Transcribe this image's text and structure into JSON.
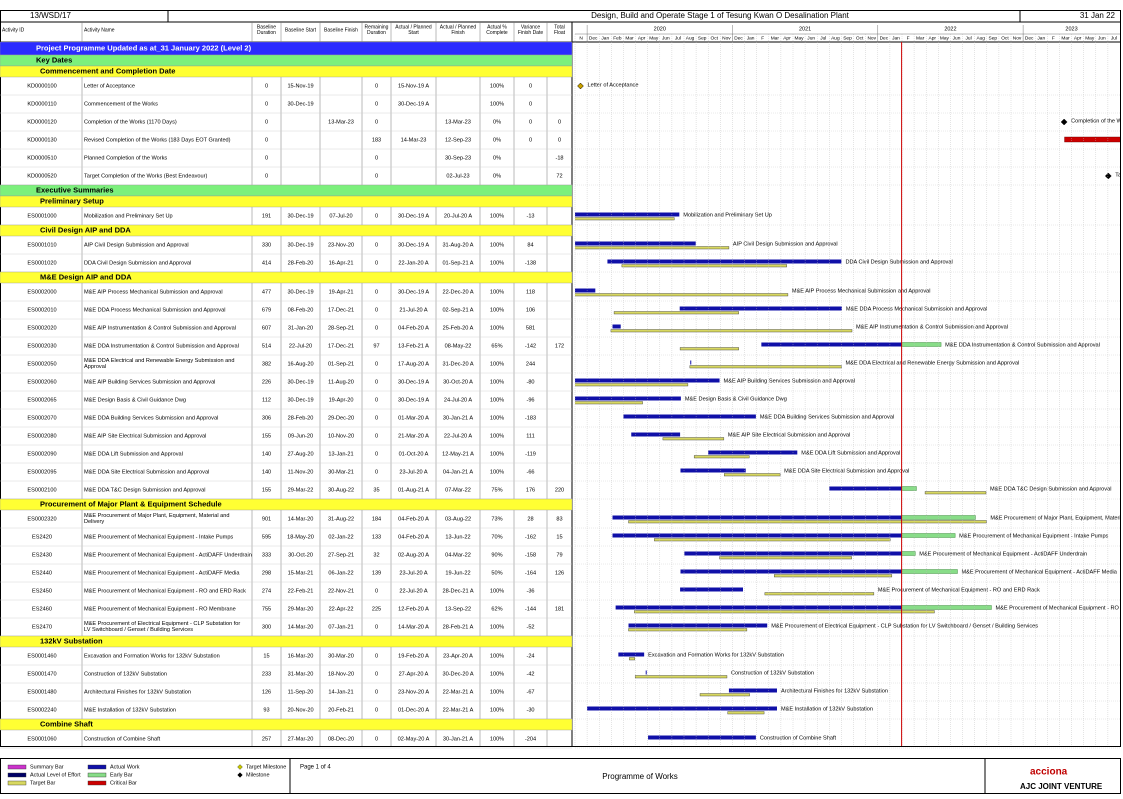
{
  "header": {
    "project_id": "13/WSD/17",
    "title": "Design, Build and Operate Stage 1 of Tesung Kwan O Desalination Plant",
    "data_date": "31 Jan 22"
  },
  "columns": [
    "Activity ID",
    "Activity Name",
    "Baseline Duration",
    "Baseline Start",
    "Baseline Finish",
    "Remaining Duration",
    "Actual / Planned Start",
    "Actual / Planned Finish",
    "Actual % Complete",
    "Variance Finish Date",
    "Total Float"
  ],
  "timeline": {
    "years": [
      "2020",
      "2021",
      "2022",
      "2023"
    ],
    "months": [
      "N",
      "Dec",
      "Jan",
      "Feb",
      "Mar",
      "Apr",
      "May",
      "Jun",
      "Jul",
      "Aug",
      "Sep",
      "Oct",
      "Nov",
      "Dec",
      "Jan",
      "F",
      "Mar",
      "Apr",
      "May",
      "Jun",
      "Jul",
      "Aug",
      "Sep",
      "Oct",
      "Nov",
      "Dec",
      "Jan",
      "F",
      "Mar",
      "Apr",
      "May",
      "Jun",
      "Jul",
      "Aug",
      "Sep",
      "Oct",
      "Nov",
      "Dec",
      "Jan",
      "F",
      "Mar",
      "Apr",
      "May",
      "Jun",
      "Jul"
    ]
  },
  "rows": [
    {
      "level": "banner",
      "text": "Project Programme Updated as at_31 January 2022 (Level 2)"
    },
    {
      "level": "group",
      "text": "Key Dates"
    },
    {
      "level": "section",
      "text": "Commencement and Completion Date"
    },
    {
      "cells": [
        "KD0000100",
        "Letter of Acceptance",
        "0",
        "15-Nov-19",
        null,
        "0",
        "15-Nov-19 A",
        null,
        "100%",
        "0",
        null
      ]
    },
    {
      "cells": [
        "KD0000110",
        "Commencement of the Works",
        "0",
        "30-Dec-19",
        null,
        "0",
        "30-Dec-19 A",
        null,
        "100%",
        "0",
        null
      ]
    },
    {
      "cells": [
        "KD0000120",
        "Completion of the Works (1170 Days)",
        "0",
        null,
        "13-Mar-23",
        "0",
        null,
        "13-Mar-23",
        "0%",
        "0",
        "0"
      ]
    },
    {
      "cells": [
        "KD0000130",
        "Revised Completion of the Works (183 Days EOT Granted)",
        "0",
        null,
        null,
        "183",
        "14-Mar-23",
        "12-Sep-23",
        "0%",
        "0",
        "0"
      ]
    },
    {
      "cells": [
        "KD0000510",
        "Planned Completion of the Works",
        "0",
        null,
        null,
        "0",
        null,
        "30-Sep-23",
        "0%",
        null,
        "-18"
      ]
    },
    {
      "cells": [
        "KD0000520",
        "Target Completion of the Works (Best Endeavour)",
        "0",
        null,
        null,
        "0",
        null,
        "02-Jul-23",
        "0%",
        null,
        "72"
      ]
    },
    {
      "level": "group",
      "text": "Executive Summaries"
    },
    {
      "level": "section",
      "text": "Preliminary Setup"
    },
    {
      "cells": [
        "ES0001000",
        "Mobilization and Preliminary Set Up",
        "191",
        "30-Dec-19",
        "07-Jul-20",
        "0",
        "30-Dec-19 A",
        "20-Jul-20 A",
        "100%",
        "-13",
        null
      ]
    },
    {
      "level": "section",
      "text": "Civil Design AIP and DDA"
    },
    {
      "cells": [
        "ES0001010",
        "AIP Civil Design Submission and Approval",
        "330",
        "30-Dec-19",
        "23-Nov-20",
        "0",
        "30-Dec-19 A",
        "31-Aug-20 A",
        "100%",
        "84",
        null
      ]
    },
    {
      "cells": [
        "ES0001020",
        "DDA Civil Design Submission and Approval",
        "414",
        "28-Feb-20",
        "16-Apr-21",
        "0",
        "22-Jan-20 A",
        "01-Sep-21 A",
        "100%",
        "-138",
        null
      ]
    },
    {
      "level": "section",
      "text": "M&E Design AIP and DDA"
    },
    {
      "cells": [
        "ES0002000",
        "M&E AIP Process Mechanical Submission and Approval",
        "477",
        "30-Dec-19",
        "19-Apr-21",
        "0",
        "30-Dec-19 A",
        "22-Dec-20 A",
        "100%",
        "118",
        null
      ]
    },
    {
      "cells": [
        "ES0002010",
        "M&E DDA Process Mechanical Submission and Approval",
        "679",
        "08-Feb-20",
        "17-Dec-21",
        "0",
        "21-Jul-20 A",
        "02-Sep-21 A",
        "100%",
        "106",
        null
      ]
    },
    {
      "cells": [
        "ES0002020",
        "M&E AIP Instrumentation & Control Submission and Approval",
        "607",
        "31-Jan-20",
        "28-Sep-21",
        "0",
        "04-Feb-20 A",
        "25-Feb-20 A",
        "100%",
        "581",
        null
      ]
    },
    {
      "cells": [
        "ES0002030",
        "M&E DDA Instrumentation & Control Submission and Approval",
        "514",
        "22-Jul-20",
        "17-Dec-21",
        "97",
        "13-Feb-21 A",
        "08-May-22",
        "65%",
        "-142",
        "172"
      ]
    },
    {
      "cells": [
        "ES0002050",
        "M&E DDA Electrical and Renewable Energy Submission and Approval",
        "382",
        "16-Aug-20",
        "01-Sep-21",
        "0",
        "17-Aug-20 A",
        "31-Dec-20 A",
        "100%",
        "244",
        null
      ]
    },
    {
      "cells": [
        "ES0002060",
        "M&E AIP Building Services Submission and Approval",
        "226",
        "30-Dec-19",
        "11-Aug-20",
        "0",
        "30-Dec-19 A",
        "30-Oct-20 A",
        "100%",
        "-80",
        null
      ]
    },
    {
      "cells": [
        "ES0002065",
        "M&E Design Basis & Civil Guidance Dwg",
        "112",
        "30-Dec-19",
        "19-Apr-20",
        "0",
        "30-Dec-19 A",
        "24-Jul-20 A",
        "100%",
        "-96",
        null
      ]
    },
    {
      "cells": [
        "ES0002070",
        "M&E DDA Building Services Submission and Approval",
        "306",
        "28-Feb-20",
        "29-Dec-20",
        "0",
        "01-Mar-20 A",
        "30-Jan-21 A",
        "100%",
        "-183",
        null
      ]
    },
    {
      "cells": [
        "ES0002080",
        "M&E AIP Site Electrical Submission and Approval",
        "155",
        "09-Jun-20",
        "10-Nov-20",
        "0",
        "21-Mar-20 A",
        "22-Jul-20 A",
        "100%",
        "111",
        null
      ]
    },
    {
      "cells": [
        "ES0002090",
        "M&E DDA Lift Submission and Approval",
        "140",
        "27-Aug-20",
        "13-Jan-21",
        "0",
        "01-Oct-20 A",
        "12-May-21 A",
        "100%",
        "-119",
        null
      ]
    },
    {
      "cells": [
        "ES0002095",
        "M&E DDA Site Electrical Submission and Approval",
        "140",
        "11-Nov-20",
        "30-Mar-21",
        "0",
        "23-Jul-20 A",
        "04-Jan-21 A",
        "100%",
        "-66",
        null
      ]
    },
    {
      "cells": [
        "ES0002100",
        "M&E DDA T&C Design Submission and Approval",
        "155",
        "29-Mar-22",
        "30-Aug-22",
        "35",
        "01-Aug-21 A",
        "07-Mar-22",
        "75%",
        "176",
        "220"
      ]
    },
    {
      "level": "section",
      "text": "Procurement of Major Plant & Equipment Schedule"
    },
    {
      "cells": [
        "ES0002320",
        "M&E Procurement of Major Plant, Equipment, Material and Delivery",
        "901",
        "14-Mar-20",
        "31-Aug-22",
        "184",
        "04-Feb-20 A",
        "03-Aug-22",
        "73%",
        "28",
        "83"
      ]
    },
    {
      "cells": [
        "ES2420",
        "M&E Procurement of Mechanical Equipment - Intake Pumps",
        "595",
        "18-May-20",
        "02-Jan-22",
        "133",
        "04-Feb-20 A",
        "13-Jun-22",
        "70%",
        "-162",
        "15"
      ]
    },
    {
      "cells": [
        "ES2430",
        "M&E Procurement of Mechanical Equipment - ActiDAFF Underdrain",
        "333",
        "30-Oct-20",
        "27-Sep-21",
        "32",
        "02-Aug-20 A",
        "04-Mar-22",
        "90%",
        "-158",
        "79"
      ]
    },
    {
      "cells": [
        "ES2440",
        "M&E Procurement of Mechanical Equipment - ActiDAFF Media",
        "298",
        "15-Mar-21",
        "06-Jan-22",
        "139",
        "23-Jul-20 A",
        "19-Jun-22",
        "50%",
        "-164",
        "126"
      ]
    },
    {
      "cells": [
        "ES2450",
        "M&E Procurement of Mechanical Equipment - RO and ERD Rack",
        "274",
        "22-Feb-21",
        "22-Nov-21",
        "0",
        "22-Jul-20 A",
        "28-Dec-21 A",
        "100%",
        "-36",
        null
      ]
    },
    {
      "cells": [
        "ES2460",
        "M&E Procurement of Mechanical Equipment - RO Membrane",
        "755",
        "29-Mar-20",
        "22-Apr-22",
        "225",
        "12-Feb-20 A",
        "13-Sep-22",
        "62%",
        "-144",
        "181"
      ]
    },
    {
      "cells": [
        "ES2470",
        "M&E Procurement of Electrical Equipment - CLP Substation for LV Switchboard / Genset / Building Services",
        "300",
        "14-Mar-20",
        "07-Jan-21",
        "0",
        "14-Mar-20 A",
        "28-Feb-21 A",
        "100%",
        "-52",
        null
      ]
    },
    {
      "level": "section",
      "text": "132kV Substation"
    },
    {
      "cells": [
        "ES0001460",
        "Excavation and Formation Works for 132kV Substation",
        "15",
        "16-Mar-20",
        "30-Mar-20",
        "0",
        "19-Feb-20 A",
        "23-Apr-20 A",
        "100%",
        "-24",
        null
      ]
    },
    {
      "cells": [
        "ES0001470",
        "Construction of 132kV Substation",
        "233",
        "31-Mar-20",
        "18-Nov-20",
        "0",
        "27-Apr-20 A",
        "30-Dec-20 A",
        "100%",
        "-42",
        null
      ]
    },
    {
      "cells": [
        "ES0001480",
        "Architectural Finishes for 132kV Substation",
        "126",
        "11-Sep-20",
        "14-Jan-21",
        "0",
        "23-Nov-20 A",
        "22-Mar-21 A",
        "100%",
        "-67",
        null
      ]
    },
    {
      "cells": [
        "ES0002240",
        "M&E Installation of 132kV Substation",
        "93",
        "20-Nov-20",
        "20-Feb-21",
        "0",
        "01-Dec-20 A",
        "22-Mar-21 A",
        "100%",
        "-30",
        null
      ]
    },
    {
      "level": "section",
      "text": "Combine Shaft"
    },
    {
      "cells": [
        "ES0001060",
        "Construction of Combine Shaft",
        "257",
        "27-Mar-20",
        "08-Dec-20",
        "0",
        "02-May-20 A",
        "30-Jan-21 A",
        "100%",
        "-204",
        null
      ]
    }
  ],
  "footer": {
    "legend": [
      {
        "label": "Summary Bar",
        "shape": "bar",
        "color": "#cc33cc"
      },
      {
        "label": "Actual Level of Effort",
        "shape": "bar",
        "color": "#000066"
      },
      {
        "label": "Target Bar",
        "shape": "bar",
        "color": "#d8d860"
      },
      {
        "label": "Actual Work",
        "shape": "bar",
        "color": "#1010a8"
      },
      {
        "label": "Early Bar",
        "shape": "bar",
        "color": "#88dd88"
      },
      {
        "label": "Critical Bar",
        "shape": "bar",
        "color": "#cc0000"
      },
      {
        "label": "Target Milestone",
        "shape": "diamond",
        "color": "#c8c800"
      },
      {
        "label": "Milestone",
        "shape": "diamond",
        "color": "#000000"
      }
    ],
    "page": "Page 1 of 4",
    "document": "Programme of Works",
    "logo": "acciona",
    "joint_venture": "AJC JOINT VENTURE"
  }
}
